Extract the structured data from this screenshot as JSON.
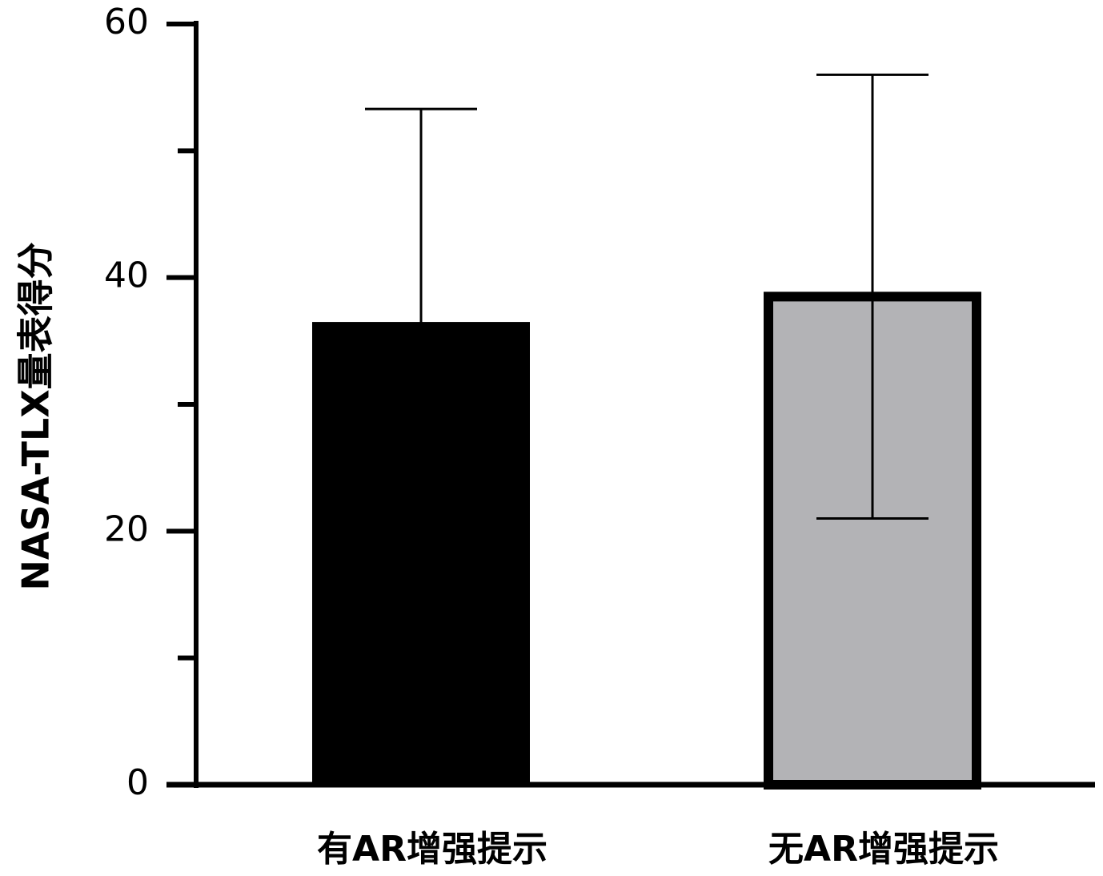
{
  "chart_data": {
    "type": "bar",
    "y_label": "NASA-TLX量表得分",
    "categories": [
      "有AR增强提示",
      "无AR增强提示"
    ],
    "values": [
      36.5,
      38.5
    ],
    "errors": [
      16.8,
      17.5
    ],
    "colors": [
      "#000000",
      "#b3b3b6"
    ],
    "ylim": [
      0,
      60
    ],
    "yticks": [
      0,
      20,
      40,
      60
    ],
    "yminorticks": [
      10,
      30,
      50
    ]
  }
}
